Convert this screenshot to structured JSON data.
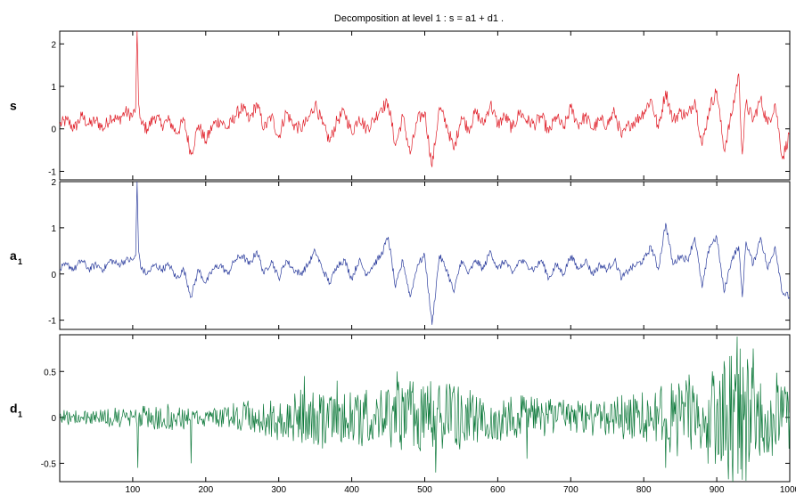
{
  "chart_data": {
    "type": "line",
    "title": "Decomposition at level 1 : s = a1 + d1 .",
    "xlim": [
      0,
      1000
    ],
    "xticks": [
      "100",
      "200",
      "300",
      "400",
      "500",
      "600",
      "700",
      "800",
      "900",
      "1000"
    ],
    "grid": false,
    "panels": [
      {
        "name": "s",
        "label": "s",
        "label_sub": "",
        "color": "#e0202a",
        "ylim": [
          -1.2,
          2.3
        ],
        "yticks": [
          "2",
          "1",
          "0",
          "-1"
        ],
        "x": [
          0,
          10,
          20,
          30,
          40,
          50,
          60,
          70,
          80,
          90,
          100,
          104,
          106,
          108,
          112,
          120,
          130,
          140,
          150,
          160,
          170,
          180,
          190,
          200,
          210,
          220,
          230,
          240,
          250,
          260,
          270,
          280,
          290,
          300,
          310,
          320,
          330,
          340,
          350,
          360,
          370,
          380,
          390,
          400,
          410,
          420,
          430,
          440,
          450,
          460,
          470,
          480,
          490,
          500,
          510,
          520,
          530,
          540,
          550,
          560,
          570,
          580,
          590,
          600,
          610,
          620,
          630,
          640,
          650,
          660,
          670,
          680,
          690,
          700,
          710,
          720,
          730,
          740,
          750,
          760,
          770,
          780,
          790,
          800,
          810,
          820,
          830,
          840,
          850,
          860,
          870,
          880,
          890,
          900,
          910,
          920,
          930,
          935,
          940,
          950,
          960,
          970,
          980,
          990,
          1000
        ],
        "values": [
          0.1,
          0.2,
          0.0,
          0.3,
          0.1,
          0.2,
          0.0,
          0.3,
          0.2,
          0.4,
          0.3,
          0.5,
          2.3,
          0.6,
          0.1,
          0.0,
          0.3,
          0.1,
          0.2,
          -0.1,
          0.2,
          -0.6,
          0.1,
          -0.3,
          0.1,
          0.2,
          0.0,
          0.3,
          0.5,
          0.2,
          0.6,
          0.0,
          0.3,
          -0.2,
          0.4,
          0.1,
          0.0,
          0.2,
          0.6,
          0.1,
          -0.3,
          0.2,
          0.4,
          -0.1,
          0.3,
          0.0,
          0.2,
          0.5,
          0.6,
          -0.4,
          0.3,
          -0.6,
          0.2,
          0.4,
          -0.9,
          0.5,
          0.1,
          -0.5,
          0.3,
          0.0,
          0.4,
          0.1,
          0.6,
          0.1,
          0.3,
          0.0,
          0.4,
          0.2,
          0.1,
          0.3,
          -0.1,
          0.3,
          0.0,
          0.5,
          0.1,
          0.3,
          0.0,
          0.2,
          0.1,
          0.4,
          -0.2,
          0.1,
          0.2,
          0.4,
          0.7,
          0.0,
          0.9,
          0.2,
          0.4,
          0.3,
          0.7,
          -0.4,
          0.5,
          0.9,
          -0.5,
          0.3,
          1.3,
          -0.6,
          0.6,
          0.2,
          0.7,
          0.1,
          0.6,
          -0.7,
          -0.1
        ]
      },
      {
        "name": "a1",
        "label": "a",
        "label_sub": "1",
        "color": "#2e3f9e",
        "ylim": [
          -1.2,
          2.0
        ],
        "yticks": [
          "2",
          "1",
          "0",
          "-1"
        ],
        "x": [
          0,
          10,
          20,
          30,
          40,
          50,
          60,
          70,
          80,
          90,
          100,
          104,
          106,
          108,
          112,
          120,
          130,
          140,
          150,
          160,
          170,
          180,
          190,
          200,
          210,
          220,
          230,
          240,
          250,
          260,
          270,
          280,
          290,
          300,
          310,
          320,
          330,
          340,
          350,
          360,
          370,
          380,
          390,
          400,
          410,
          420,
          430,
          440,
          450,
          460,
          470,
          480,
          490,
          500,
          510,
          520,
          530,
          540,
          550,
          560,
          570,
          580,
          590,
          600,
          610,
          620,
          630,
          640,
          650,
          660,
          670,
          680,
          690,
          700,
          710,
          720,
          730,
          740,
          750,
          760,
          770,
          780,
          790,
          800,
          810,
          820,
          830,
          840,
          850,
          860,
          870,
          880,
          890,
          900,
          910,
          920,
          930,
          935,
          940,
          950,
          960,
          970,
          980,
          990,
          1000
        ],
        "values": [
          0.1,
          0.2,
          0.1,
          0.3,
          0.1,
          0.2,
          0.1,
          0.3,
          0.2,
          0.3,
          0.3,
          0.4,
          2.0,
          0.5,
          0.1,
          0.0,
          0.2,
          0.1,
          0.2,
          -0.1,
          0.1,
          -0.5,
          0.1,
          -0.2,
          0.1,
          0.2,
          0.0,
          0.3,
          0.4,
          0.2,
          0.5,
          0.0,
          0.3,
          -0.1,
          0.3,
          0.1,
          0.0,
          0.2,
          0.5,
          0.1,
          -0.2,
          0.2,
          0.3,
          -0.1,
          0.3,
          0.0,
          0.2,
          0.4,
          0.8,
          -0.3,
          0.3,
          -0.5,
          0.2,
          0.4,
          -1.1,
          0.4,
          0.1,
          -0.4,
          0.3,
          0.0,
          0.3,
          0.1,
          0.5,
          0.1,
          0.3,
          0.0,
          0.3,
          0.2,
          0.1,
          0.3,
          -0.1,
          0.2,
          0.0,
          0.4,
          0.1,
          0.3,
          0.0,
          0.2,
          0.1,
          0.3,
          -0.1,
          0.1,
          0.2,
          0.3,
          0.6,
          0.1,
          1.1,
          0.2,
          0.4,
          0.3,
          0.8,
          -0.3,
          0.6,
          0.8,
          -0.4,
          0.3,
          0.6,
          -0.5,
          0.7,
          0.2,
          0.8,
          0.1,
          0.6,
          -0.4,
          -0.5
        ]
      },
      {
        "name": "d1",
        "label": "d",
        "label_sub": "1",
        "color": "#0f7a3c",
        "ylim": [
          -0.7,
          0.9
        ],
        "yticks": [
          "0.5",
          "0",
          "-0.5"
        ],
        "noise": true,
        "envelope_x": [
          0,
          100,
          150,
          200,
          250,
          300,
          350,
          400,
          450,
          500,
          550,
          600,
          650,
          700,
          750,
          800,
          850,
          900,
          930,
          950,
          1000
        ],
        "envelope_values": [
          0.08,
          0.12,
          0.15,
          0.1,
          0.18,
          0.25,
          0.35,
          0.3,
          0.38,
          0.45,
          0.35,
          0.3,
          0.22,
          0.2,
          0.22,
          0.3,
          0.45,
          0.55,
          0.85,
          0.55,
          0.45
        ],
        "spikes_x": [
          107,
          180,
          335,
          380,
          462,
          515,
          640,
          830,
          928,
          935,
          950
        ],
        "spikes_values": [
          -0.55,
          -0.5,
          0.45,
          0.4,
          0.5,
          -0.6,
          -0.45,
          -0.55,
          0.88,
          -0.68,
          0.75
        ]
      }
    ]
  }
}
